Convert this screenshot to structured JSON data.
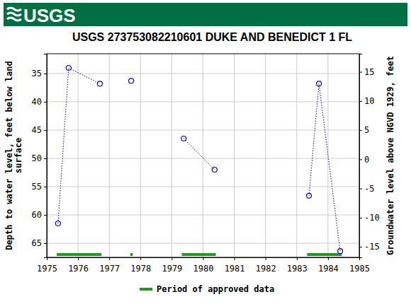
{
  "header": {
    "logo": "USGS",
    "color": "#006f41"
  },
  "chart_data": {
    "type": "line",
    "title": "USGS 273753082210601 DUKE AND BENEDICT 1 FL",
    "ylabel": [
      "Depth to water level, feet below land",
      "surface"
    ],
    "y2label": "Groundwater level above NGVD 1929, feet",
    "x": [
      1975.36,
      1975.7,
      1976.7,
      null,
      1977.7,
      null,
      1979.38,
      1980.37,
      null,
      1983.39,
      1983.71,
      1984.39
    ],
    "series": [
      {
        "color": "#0000ff",
        "marker": "circle-open",
        "line_style": "dotted",
        "values": [
          61.5,
          34.0,
          36.8,
          null,
          36.3,
          null,
          46.5,
          52.0,
          null,
          56.6,
          36.8,
          66.4
        ]
      }
    ],
    "approved": {
      "name": "Period of approved data",
      "color": "#229922",
      "periods": [
        [
          1975.32,
          1976.75
        ],
        [
          1977.67,
          1977.75
        ],
        [
          1979.32,
          1980.41
        ],
        [
          1983.33,
          1984.44
        ]
      ]
    },
    "xlim": [
      1975,
      1985
    ],
    "xticks": [
      1975,
      1976,
      1977,
      1978,
      1979,
      1980,
      1981,
      1982,
      1983,
      1984,
      1985
    ],
    "ylim": [
      67.5,
      31.5
    ],
    "yticks": [
      35,
      40,
      45,
      50,
      55,
      60,
      65
    ],
    "y2lim": [
      -16.8,
      18.1
    ],
    "y2ticks": [
      -15,
      -10,
      -5,
      0,
      5,
      10,
      15
    ],
    "grid": true
  }
}
